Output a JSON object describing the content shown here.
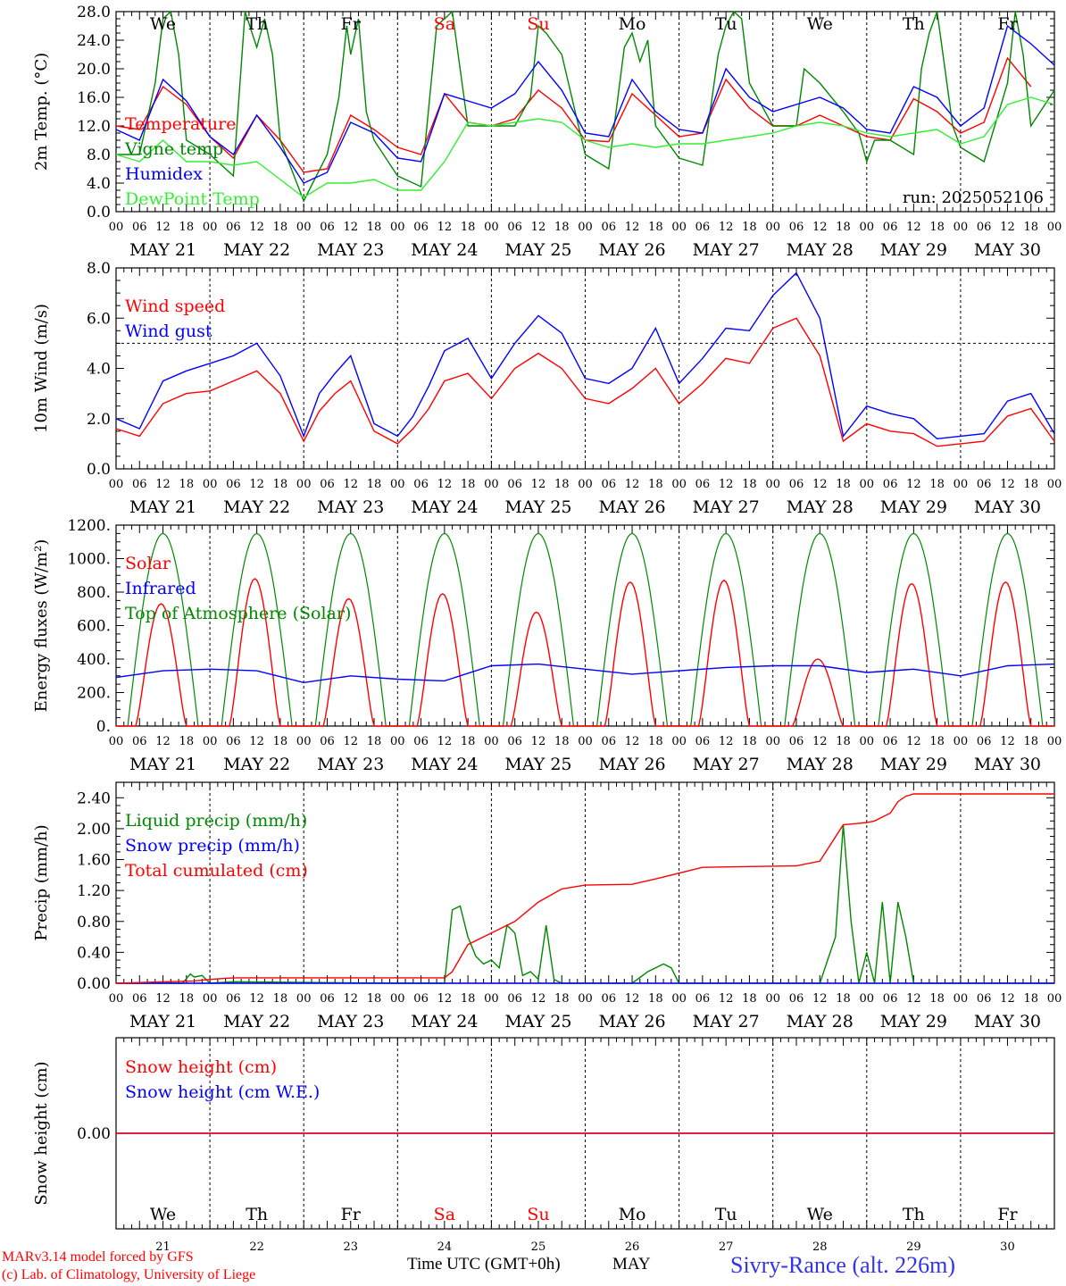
{
  "days": {
    "weekday_labels": [
      "We",
      "Th",
      "Fr",
      "Sa",
      "Su",
      "Mo",
      "Tu",
      "We",
      "Th",
      "Fr"
    ],
    "weekend_flags": [
      false,
      false,
      false,
      true,
      true,
      false,
      false,
      false,
      false,
      false
    ],
    "date_labels": [
      "MAY 21",
      "MAY 22",
      "MAY 23",
      "MAY 24",
      "MAY 25",
      "MAY 26",
      "MAY 27",
      "MAY 28",
      "MAY 29",
      "MAY 30"
    ],
    "day_numbers": [
      "21",
      "22",
      "23",
      "24",
      "25",
      "26",
      "27",
      "28",
      "29",
      "30"
    ],
    "hour_ticks": [
      "00",
      "06",
      "12",
      "18"
    ]
  },
  "colors": {
    "red": "#ff0000",
    "green": "#008800",
    "blue": "#0000ff",
    "lightgreen": "#33ee33",
    "weekend": "#ff0000"
  },
  "footer": {
    "model": "MARv3.14 model forced by GFS",
    "lab": "(c) Lab. of Climatology, University of Liege",
    "time_label": "Time UTC (GMT+0h)",
    "month": "MAY",
    "station": "Sivry-Rance (alt. 226m)"
  },
  "chart_data": [
    {
      "type": "line",
      "ylabel": "2m Temp. (°C)",
      "ylim": [
        0,
        28
      ],
      "yticks": [
        "0.0",
        "4.0",
        "8.0",
        "12.0",
        "16.0",
        "20.0",
        "24.0",
        "28.0"
      ],
      "ytick_values": [
        0,
        4,
        8,
        12,
        16,
        20,
        24,
        28
      ],
      "annotation": "run: 2025052106",
      "show_weekdays": true,
      "x_unit": "hours since MAY 21 00 UTC",
      "series": [
        {
          "name": "Temperature",
          "color": "red",
          "x": [
            0,
            6,
            12,
            18,
            24,
            30,
            36,
            42,
            48,
            54,
            60,
            66,
            72,
            78,
            84,
            90,
            96,
            102,
            108,
            114,
            120,
            126,
            132,
            138,
            144,
            150,
            156,
            162,
            168,
            174,
            180,
            186,
            192,
            198,
            204,
            210,
            216,
            222,
            228,
            234
          ],
          "values": [
            12,
            11.5,
            17.5,
            15,
            10.5,
            7.5,
            13.5,
            10,
            5.5,
            6,
            13.5,
            11.5,
            9,
            8,
            16.5,
            12.5,
            12,
            13,
            17,
            14.5,
            10,
            9.8,
            16.5,
            13.5,
            10.5,
            11,
            18.5,
            14.5,
            12,
            12,
            13.5,
            12,
            10.5,
            10,
            15.8,
            14,
            11,
            12.5,
            21.5,
            17.5
          ]
        },
        {
          "name": "Vigne temp",
          "color": "green",
          "x": [
            0,
            6,
            10,
            12,
            14,
            16,
            18,
            24,
            30,
            33,
            36,
            38,
            40,
            42,
            48,
            54,
            57,
            59,
            60,
            62,
            64,
            66,
            72,
            78,
            82,
            84,
            86,
            90,
            96,
            100,
            102,
            106,
            108,
            110,
            114,
            120,
            126,
            130,
            132,
            134,
            136,
            138,
            144,
            150,
            154,
            156,
            158,
            160,
            162,
            168,
            172,
            174,
            176,
            180,
            186,
            190,
            192,
            194,
            198,
            204,
            206,
            208,
            210,
            212,
            214,
            216,
            222,
            228,
            230,
            232,
            234,
            240
          ],
          "values": [
            8,
            8,
            18,
            27,
            28,
            22,
            10,
            8,
            5,
            28,
            23,
            27,
            22,
            10,
            1.5,
            8,
            16,
            26,
            22,
            27,
            14,
            10,
            5,
            3.5,
            26,
            27,
            28,
            12,
            12,
            12,
            12,
            16,
            26,
            25,
            22,
            8,
            6,
            23,
            25,
            21,
            24,
            12,
            7.5,
            6.5,
            22,
            26,
            28,
            27,
            18,
            12,
            12,
            12,
            20,
            18,
            14,
            11,
            7,
            10,
            10,
            8,
            20,
            25,
            28,
            20,
            12,
            9,
            7,
            18,
            28,
            22,
            12,
            17
          ]
        },
        {
          "name": "Humidex",
          "color": "blue",
          "x": [
            0,
            6,
            12,
            18,
            24,
            30,
            36,
            42,
            48,
            54,
            60,
            66,
            72,
            78,
            84,
            90,
            96,
            102,
            108,
            114,
            120,
            126,
            132,
            138,
            144,
            150,
            156,
            162,
            168,
            174,
            180,
            186,
            192,
            198,
            204,
            210,
            216,
            222,
            228,
            234,
            240
          ],
          "values": [
            11.5,
            10,
            18.5,
            15.5,
            10.5,
            8,
            13.5,
            9,
            4,
            5.5,
            12.5,
            11,
            7.5,
            7,
            16.5,
            15.5,
            14.5,
            16.5,
            21,
            17,
            11,
            10.5,
            18.5,
            14,
            11.5,
            11,
            20,
            16,
            14,
            15,
            16,
            14.5,
            11.5,
            11,
            17.5,
            16,
            12,
            14.5,
            26,
            23.5,
            20.5
          ]
        },
        {
          "name": "DewPoint Temp",
          "color": "lightgreen",
          "x": [
            0,
            6,
            12,
            18,
            24,
            30,
            36,
            42,
            48,
            54,
            60,
            66,
            72,
            78,
            84,
            90,
            96,
            102,
            108,
            114,
            120,
            126,
            132,
            138,
            144,
            150,
            156,
            162,
            168,
            174,
            180,
            186,
            192,
            198,
            204,
            210,
            216,
            222,
            228,
            234,
            240
          ],
          "values": [
            8,
            7,
            10,
            7,
            7,
            6.5,
            7,
            4.5,
            2,
            4,
            4,
            4.5,
            3,
            3,
            7,
            12.5,
            12,
            12.5,
            13,
            12.5,
            10,
            9,
            9.5,
            9,
            9.5,
            9.5,
            10,
            10.5,
            11,
            12,
            12.5,
            12,
            11,
            10.5,
            11,
            11.5,
            9.5,
            10.5,
            15,
            16,
            15
          ]
        }
      ],
      "legend": [
        [
          "Temperature",
          "red"
        ],
        [
          "Vigne temp",
          "green"
        ],
        [
          "Humidex",
          "blue"
        ],
        [
          "DewPoint Temp",
          "lightgreen"
        ]
      ]
    },
    {
      "type": "line",
      "ylabel": "10m Wind (m/s)",
      "ylim": [
        0,
        8
      ],
      "yticks": [
        "0.0",
        "2.0",
        "4.0",
        "6.0",
        "8.0"
      ],
      "ytick_values": [
        0,
        2,
        4,
        6,
        8
      ],
      "ref_line": 5,
      "x_unit": "hours since MAY 21 00 UTC",
      "series": [
        {
          "name": "Wind speed",
          "color": "red",
          "x": [
            0,
            6,
            12,
            18,
            24,
            30,
            36,
            42,
            48,
            52,
            56,
            60,
            66,
            72,
            76,
            80,
            84,
            90,
            96,
            102,
            108,
            114,
            120,
            126,
            132,
            138,
            144,
            150,
            156,
            162,
            168,
            174,
            180,
            186,
            192,
            198,
            204,
            210,
            216,
            222,
            228,
            234,
            240
          ],
          "values": [
            1.6,
            1.3,
            2.6,
            3.0,
            3.1,
            3.5,
            3.9,
            3.0,
            1.1,
            2.3,
            3.0,
            3.5,
            1.5,
            1.0,
            1.6,
            2.4,
            3.5,
            3.8,
            2.8,
            4.0,
            4.6,
            4.0,
            2.8,
            2.6,
            3.2,
            4.0,
            2.6,
            3.4,
            4.4,
            4.2,
            5.6,
            6.0,
            4.5,
            1.1,
            1.8,
            1.5,
            1.4,
            0.9,
            1.0,
            1.1,
            2.1,
            2.4,
            1.1
          ]
        },
        {
          "name": "Wind gust",
          "color": "blue",
          "x": [
            0,
            6,
            12,
            18,
            24,
            30,
            36,
            42,
            48,
            52,
            56,
            60,
            66,
            72,
            76,
            80,
            84,
            90,
            96,
            102,
            108,
            114,
            120,
            126,
            132,
            138,
            144,
            150,
            156,
            162,
            168,
            174,
            180,
            186,
            192,
            198,
            204,
            210,
            216,
            222,
            228,
            234,
            240
          ],
          "values": [
            2.0,
            1.6,
            3.5,
            3.9,
            4.2,
            4.5,
            5.0,
            3.7,
            1.3,
            3.0,
            3.8,
            4.5,
            1.8,
            1.3,
            2.1,
            3.3,
            4.7,
            5.2,
            3.6,
            5.0,
            6.1,
            5.4,
            3.6,
            3.4,
            4.0,
            5.6,
            3.4,
            4.4,
            5.6,
            5.5,
            6.9,
            7.8,
            6.0,
            1.3,
            2.5,
            2.2,
            2.0,
            1.2,
            1.3,
            1.4,
            2.7,
            3.0,
            1.4
          ]
        }
      ],
      "legend": [
        [
          "Wind speed",
          "red"
        ],
        [
          "Wind gust",
          "blue"
        ]
      ]
    },
    {
      "type": "line",
      "ylabel": "Energy fluxes (W/m²)",
      "ylim": [
        0,
        1200
      ],
      "yticks": [
        "0.",
        "200.",
        "400.",
        "600.",
        "800.",
        "1000.",
        "1200."
      ],
      "ytick_values": [
        0,
        200,
        400,
        600,
        800,
        1000,
        1200
      ],
      "x_unit": "hours since MAY 21 00 UTC",
      "solar_peaks": [
        730,
        880,
        760,
        790,
        680,
        860,
        870,
        400,
        850,
        860
      ],
      "toa_peak": 1150,
      "infrared": {
        "x": [
          0,
          12,
          24,
          36,
          48,
          60,
          72,
          84,
          96,
          108,
          120,
          132,
          144,
          156,
          168,
          180,
          192,
          204,
          216,
          228,
          240
        ],
        "values": [
          290,
          330,
          340,
          330,
          260,
          300,
          280,
          270,
          360,
          370,
          340,
          310,
          330,
          350,
          360,
          360,
          320,
          340,
          300,
          360,
          370
        ]
      },
      "series_names": [
        "Solar",
        "Infrared",
        "Top of Atmosphere (Solar)"
      ],
      "legend": [
        [
          "Solar",
          "red"
        ],
        [
          "Infrared",
          "blue"
        ],
        [
          "Top of Atmosphere (Solar)",
          "green"
        ]
      ]
    },
    {
      "type": "line",
      "ylabel": "Precip (mm/h)",
      "ylim": [
        0,
        2.6
      ],
      "yticks": [
        "0.00",
        "0.40",
        "0.80",
        "1.20",
        "1.60",
        "2.00",
        "2.40"
      ],
      "ytick_values": [
        0,
        0.4,
        0.8,
        1.2,
        1.6,
        2.0,
        2.4
      ],
      "x_unit": "hours since MAY 21 00 UTC",
      "series": [
        {
          "name": "Liquid precip (mm/h)",
          "color": "green",
          "x": [
            0,
            17,
            19,
            20,
            22,
            24,
            30,
            72,
            84,
            86,
            88,
            90,
            92,
            94,
            96,
            98,
            100,
            102,
            104,
            106,
            108,
            110,
            112,
            114,
            116,
            120,
            132,
            136,
            138,
            140,
            142,
            144,
            180,
            182,
            184,
            186,
            188,
            190,
            192,
            194,
            196,
            198,
            200,
            202,
            204,
            240
          ],
          "values": [
            0,
            0,
            0.12,
            0.08,
            0.1,
            0,
            0.02,
            0,
            0,
            0.95,
            1.0,
            0.6,
            0.35,
            0.25,
            0.3,
            0.2,
            0.75,
            0.65,
            0.1,
            0.15,
            0.05,
            0.75,
            0.05,
            0,
            0,
            0,
            0,
            0.15,
            0.2,
            0.25,
            0.2,
            0,
            0,
            0.3,
            0.6,
            2.05,
            0.8,
            0,
            0.4,
            0,
            1.05,
            0,
            1.05,
            0.6,
            0,
            0
          ]
        },
        {
          "name": "Snow precip (mm/h)",
          "color": "blue",
          "x": [
            0,
            240
          ],
          "values": [
            0,
            0
          ]
        },
        {
          "name": "Total cumulated (cm)",
          "color": "red",
          "x": [
            0,
            20,
            24,
            30,
            84,
            86,
            90,
            96,
            102,
            108,
            114,
            120,
            132,
            138,
            150,
            162,
            174,
            180,
            186,
            190,
            192,
            194,
            196,
            198,
            200,
            202,
            204,
            240
          ],
          "values": [
            0,
            0.03,
            0.05,
            0.07,
            0.07,
            0.15,
            0.5,
            0.65,
            0.8,
            1.05,
            1.22,
            1.27,
            1.28,
            1.35,
            1.5,
            1.51,
            1.52,
            1.58,
            2.05,
            2.07,
            2.08,
            2.1,
            2.15,
            2.2,
            2.35,
            2.42,
            2.45,
            2.45
          ]
        }
      ],
      "legend": [
        [
          "Liquid precip (mm/h)",
          "green"
        ],
        [
          "Snow precip (mm/h)",
          "blue"
        ],
        [
          "Total cumulated (cm)",
          "red"
        ]
      ]
    },
    {
      "type": "line",
      "ylabel": "Snow height (cm)",
      "ylim": [
        -1,
        1
      ],
      "yticks": [
        "0.00"
      ],
      "ytick_values": [
        0
      ],
      "x_unit": "hours since MAY 21 00 UTC",
      "series": [
        {
          "name": "Snow height (cm)",
          "color": "red",
          "x": [
            0,
            240
          ],
          "values": [
            0,
            0
          ]
        },
        {
          "name": "Snow height (cm W.E.)",
          "color": "blue",
          "x": [
            0,
            240
          ],
          "values": [
            0,
            0
          ]
        }
      ],
      "legend": [
        [
          "Snow height (cm)",
          "red"
        ],
        [
          "Snow height (cm W.E.)",
          "blue"
        ]
      ]
    }
  ]
}
